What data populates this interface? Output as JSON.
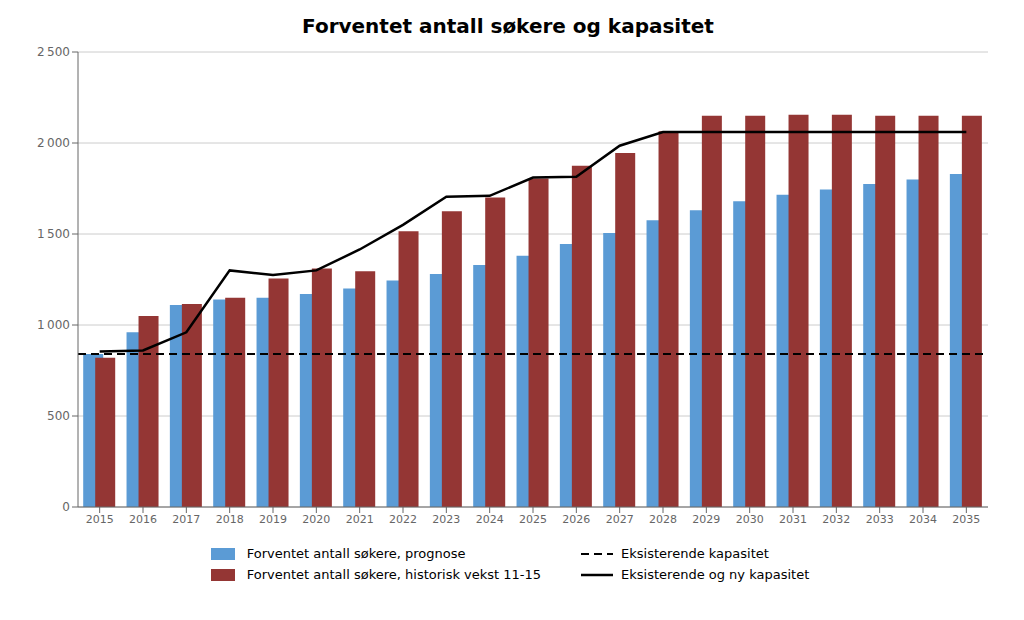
{
  "chart_data": {
    "type": "bar",
    "title": "Forventet antall søkere og kapasitet",
    "categories": [
      "2015",
      "2016",
      "2017",
      "2018",
      "2019",
      "2020",
      "2021",
      "2022",
      "2023",
      "2024",
      "2025",
      "2026",
      "2027",
      "2028",
      "2029",
      "2030",
      "2031",
      "2032",
      "2033",
      "2034",
      "2035"
    ],
    "series": [
      {
        "name": "Forventet antall søkere, prognose",
        "type": "bar",
        "color": "#5b9bd5",
        "values": [
          840,
          960,
          1110,
          1140,
          1150,
          1170,
          1200,
          1245,
          1280,
          1330,
          1380,
          1445,
          1505,
          1575,
          1630,
          1680,
          1715,
          1745,
          1775,
          1800,
          1830
        ]
      },
      {
        "name": "Forventet antall søkere, historisk vekst 11-15",
        "type": "bar",
        "color": "#943634",
        "values": [
          820,
          1050,
          1115,
          1150,
          1255,
          1310,
          1295,
          1515,
          1625,
          1700,
          1805,
          1875,
          1945,
          2065,
          2150,
          2150,
          2155,
          2155,
          2150,
          2150,
          2150
        ]
      },
      {
        "name": "Eksisterende kapasitet",
        "type": "hline",
        "color": "#000000",
        "line_style": "dashed",
        "value": 840
      },
      {
        "name": "Eksisterende og ny kapasitet",
        "type": "line",
        "color": "#000000",
        "line_style": "solid",
        "values": [
          855,
          860,
          960,
          1300,
          1275,
          1300,
          1415,
          1550,
          1705,
          1710,
          1810,
          1815,
          1985,
          2060,
          2060,
          2060,
          2060,
          2060,
          2060,
          2060,
          2060
        ]
      }
    ],
    "ylim": [
      0,
      2500
    ],
    "yticks": [
      0,
      500,
      {
        "value": 1000,
        "label": "1 000"
      },
      {
        "value": 1500,
        "label": "1 500"
      },
      {
        "value": 2000,
        "label": "2 000"
      },
      {
        "value": 2500,
        "label": "2 500"
      }
    ],
    "grid": true
  }
}
